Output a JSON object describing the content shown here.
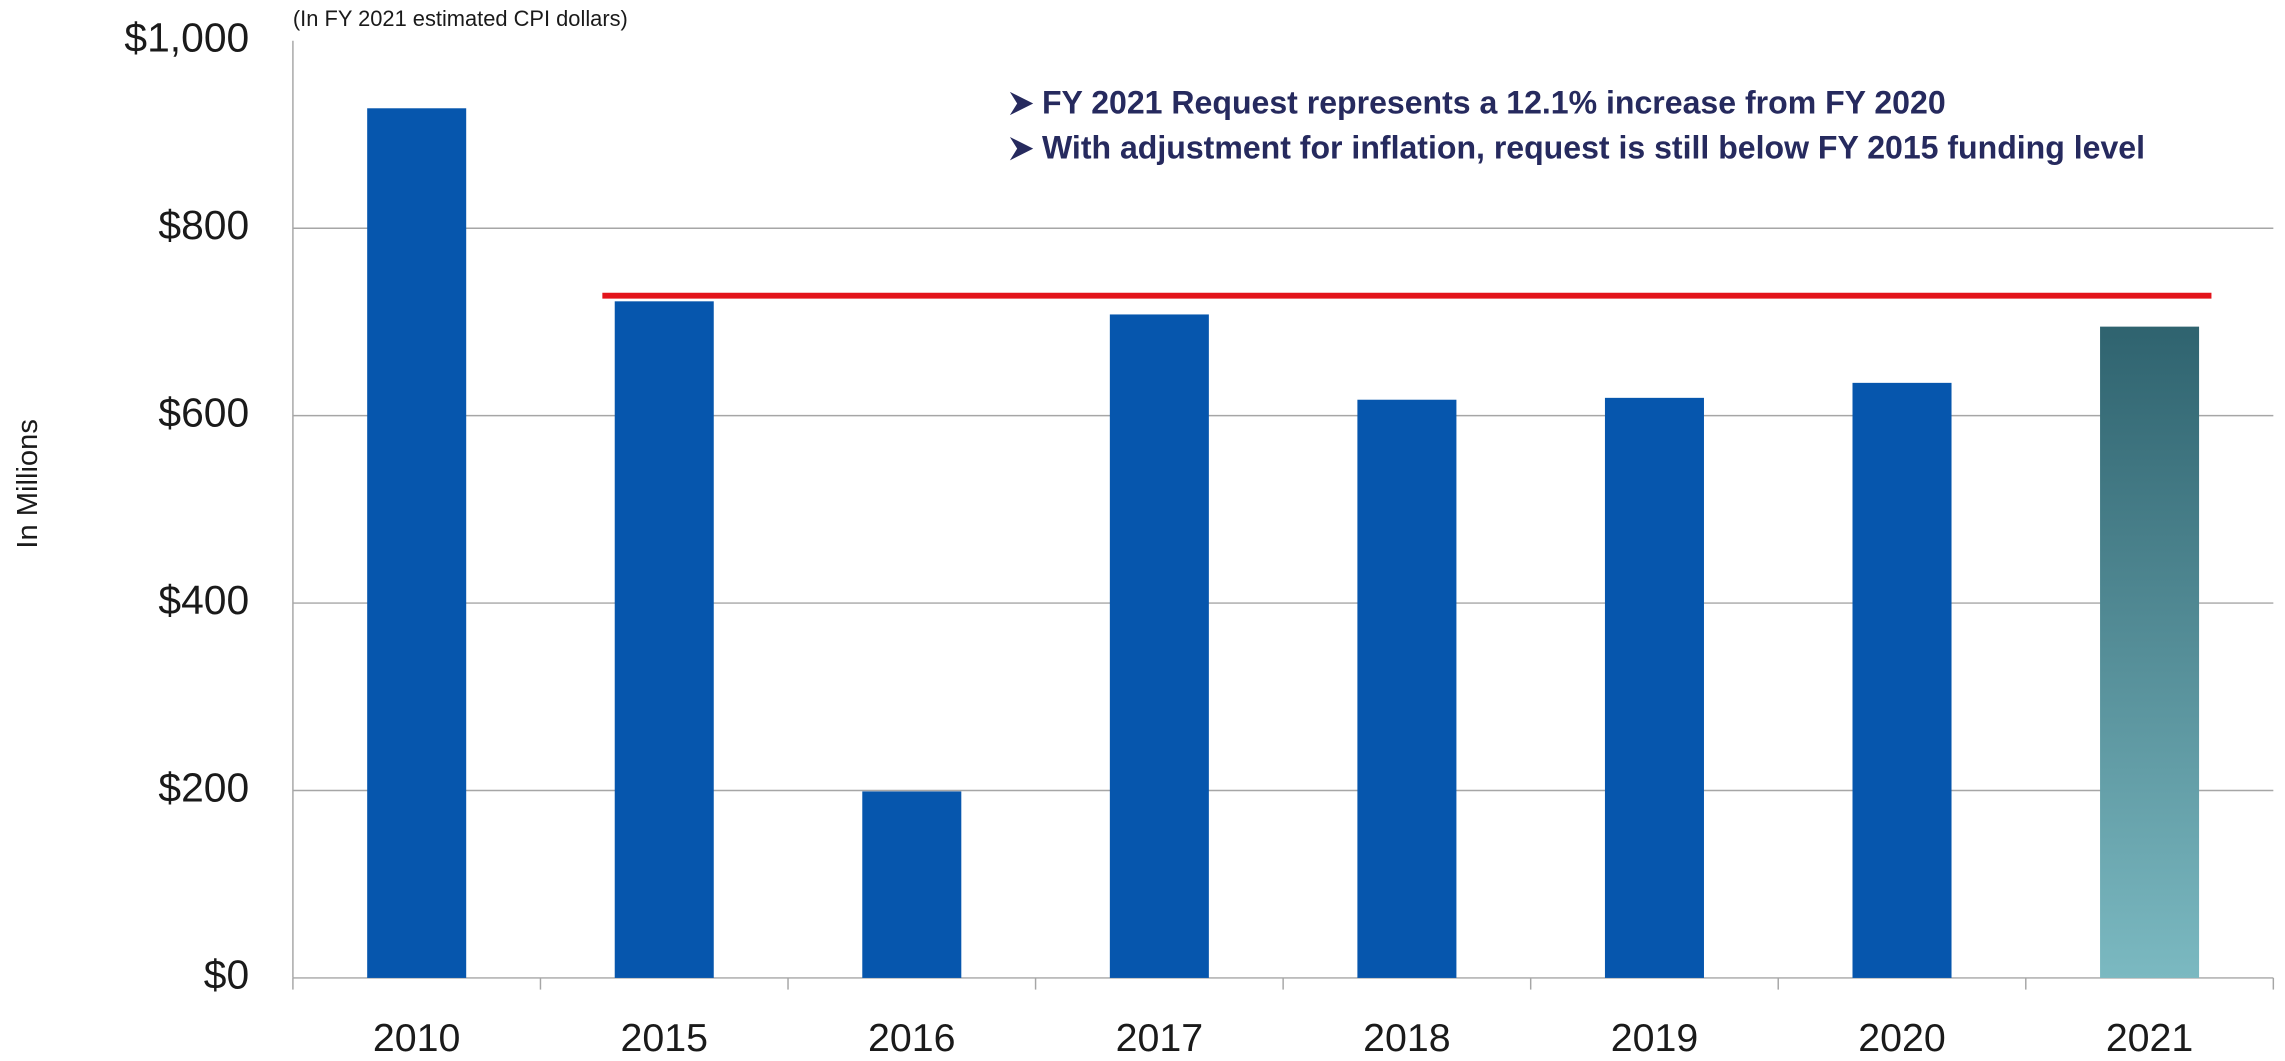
{
  "chart_data": {
    "type": "bar",
    "subtitle": "(In FY 2021 estimated CPI dollars)",
    "y_label": "In Millions",
    "annotations": [
      "FY 2021 Request represents a 12.1% increase from FY 2020",
      "With adjustment for inflation, request is still below FY 2015 funding level"
    ],
    "categories": [
      "2010",
      "2015",
      "2016",
      "2017",
      "2018",
      "2019",
      "2020",
      "2021"
    ],
    "values": [
      928,
      722,
      199,
      708,
      617,
      619,
      635,
      695
    ],
    "color": "#0656ad",
    "highlight_gradient": [
      "#2f636f",
      "#7bb9c1"
    ],
    "reference_value": 728,
    "reference_color": "#e3141b",
    "ylim": [
      0,
      1000
    ],
    "yticks": [
      {
        "value": 0,
        "label": "$0"
      },
      {
        "value": 200,
        "label": "$200"
      },
      {
        "value": 400,
        "label": "$400"
      },
      {
        "value": 600,
        "label": "$600"
      },
      {
        "value": 800,
        "label": "$800"
      },
      {
        "value": 1000,
        "label": "$1,000"
      }
    ],
    "grid": true
  }
}
